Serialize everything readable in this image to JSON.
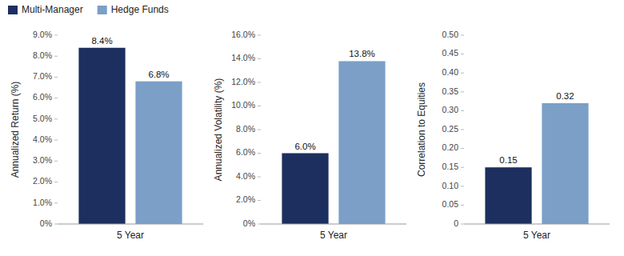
{
  "chart_data": [
    {
      "type": "bar",
      "ylabel": "Annualized Return (%)",
      "categories": [
        "5 Year"
      ],
      "series": [
        {
          "name": "Multi-Manager",
          "color": "#1c2f5e",
          "values": [
            0.084
          ],
          "value_labels": [
            "8.4%"
          ]
        },
        {
          "name": "Hedge Funds",
          "color": "#7b9fc7",
          "values": [
            0.068
          ],
          "value_labels": [
            "6.8%"
          ]
        }
      ],
      "ylim": [
        0,
        0.09
      ],
      "yticks": [
        {
          "value": 0,
          "label": "0%"
        },
        {
          "value": 0.01,
          "label": "1.0%"
        },
        {
          "value": 0.02,
          "label": "2.0%"
        },
        {
          "value": 0.03,
          "label": "3.0%"
        },
        {
          "value": 0.04,
          "label": "4.0%"
        },
        {
          "value": 0.05,
          "label": "5.0%"
        },
        {
          "value": 0.06,
          "label": "6.0%"
        },
        {
          "value": 0.07,
          "label": "7.0%"
        },
        {
          "value": 0.08,
          "label": "8.0%"
        },
        {
          "value": 0.09,
          "label": "9.0%"
        }
      ],
      "grid": false,
      "data_labels": true,
      "legend": "top-left"
    },
    {
      "type": "bar",
      "ylabel": "Annualized Volatility (%)",
      "categories": [
        "5 Year"
      ],
      "series": [
        {
          "color": "#1c2f5e",
          "values": [
            0.06
          ],
          "value_labels": [
            "6.0%"
          ]
        },
        {
          "color": "#7b9fc7",
          "values": [
            0.138
          ],
          "value_labels": [
            "13.8%"
          ]
        }
      ],
      "ylim": [
        0,
        0.16
      ],
      "yticks": [
        {
          "value": 0,
          "label": "0%"
        },
        {
          "value": 0.02,
          "label": "2.0%"
        },
        {
          "value": 0.04,
          "label": "4.0%"
        },
        {
          "value": 0.06,
          "label": "6.0%"
        },
        {
          "value": 0.08,
          "label": "8.0%"
        },
        {
          "value": 0.1,
          "label": "10.0%"
        },
        {
          "value": 0.12,
          "label": "12.0%"
        },
        {
          "value": 0.14,
          "label": "14.0%"
        },
        {
          "value": 0.16,
          "label": "16.0%"
        }
      ],
      "grid": false,
      "data_labels": true
    },
    {
      "type": "bar",
      "ylabel": "Correlation to Equities",
      "categories": [
        "5 Year"
      ],
      "series": [
        {
          "color": "#1c2f5e",
          "values": [
            0.15
          ]
        },
        {
          "color": "#7b9fc7",
          "values": [
            0.32
          ]
        }
      ],
      "ylim": [
        0,
        0.5
      ],
      "yticks": [
        0,
        0.05,
        {
          "value": 0.1,
          "label": "0.10"
        },
        0.15,
        {
          "value": 0.2,
          "label": "0.20"
        },
        0.25,
        {
          "value": 0.3,
          "label": "0.30"
        },
        0.35,
        {
          "value": 0.4,
          "label": "0.40"
        },
        0.45,
        {
          "value": 0.5,
          "label": "0.50"
        }
      ],
      "grid": false,
      "data_labels": true
    }
  ]
}
